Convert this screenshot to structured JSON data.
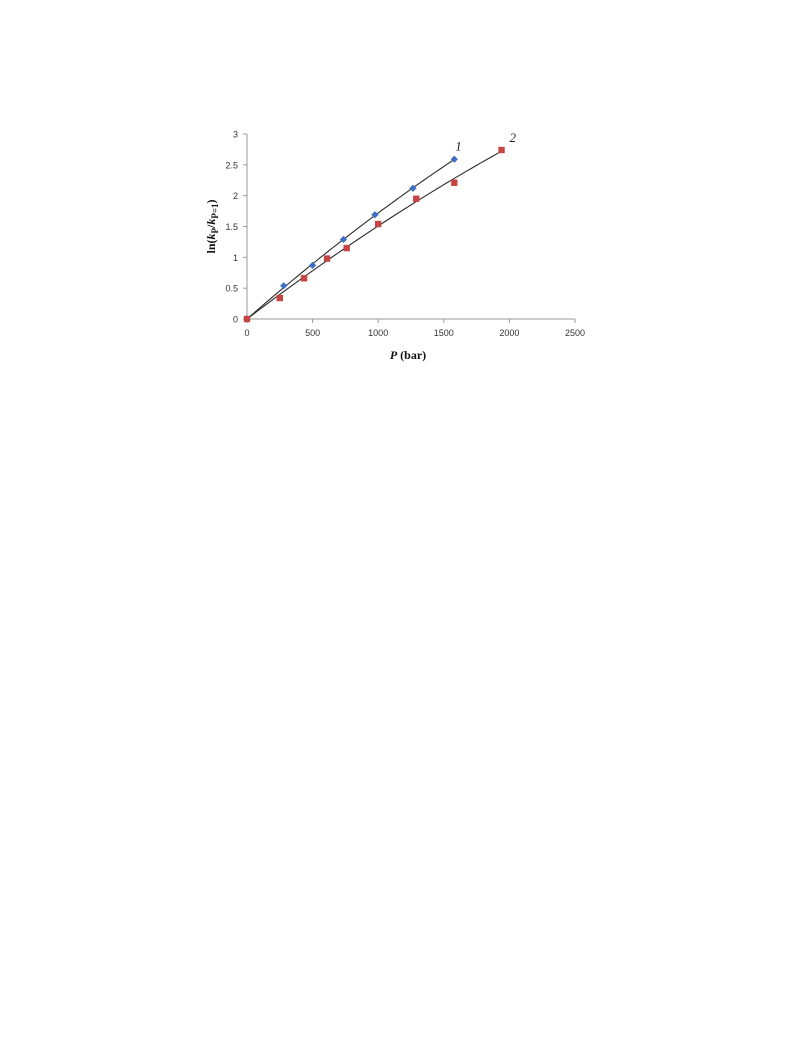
{
  "chart_data": {
    "type": "scatter",
    "xlabel": {
      "var": "P",
      "unit": " (bar)"
    },
    "ylabel": {
      "prefix": "ln(",
      "k1": "k",
      "s1": "P",
      "slash": "/",
      "k2": "k",
      "s2": "P=1",
      "suffix": ")"
    },
    "xlim": [
      0,
      2500
    ],
    "ylim": [
      0,
      3
    ],
    "x_ticks": [
      0,
      500,
      1000,
      1500,
      2000,
      2500
    ],
    "y_ticks": [
      0,
      0.5,
      1,
      1.5,
      2,
      2.5,
      3
    ],
    "grid": false,
    "series": [
      {
        "name": "1",
        "marker": "diamond",
        "color": "#3d6fc4",
        "x": [
          0,
          280,
          500,
          735,
          975,
          1265,
          1580
        ],
        "y": [
          0,
          0.54,
          0.87,
          1.29,
          1.69,
          2.12,
          2.59
        ],
        "fit_end_x": 1580
      },
      {
        "name": "2",
        "marker": "square",
        "color": "#c84444",
        "x": [
          0,
          250,
          435,
          610,
          760,
          1000,
          1290,
          1580,
          1940
        ],
        "y": [
          0,
          0.34,
          0.66,
          0.98,
          1.15,
          1.54,
          1.95,
          2.21,
          2.74
        ],
        "fit_end_x": 1940
      }
    ]
  }
}
